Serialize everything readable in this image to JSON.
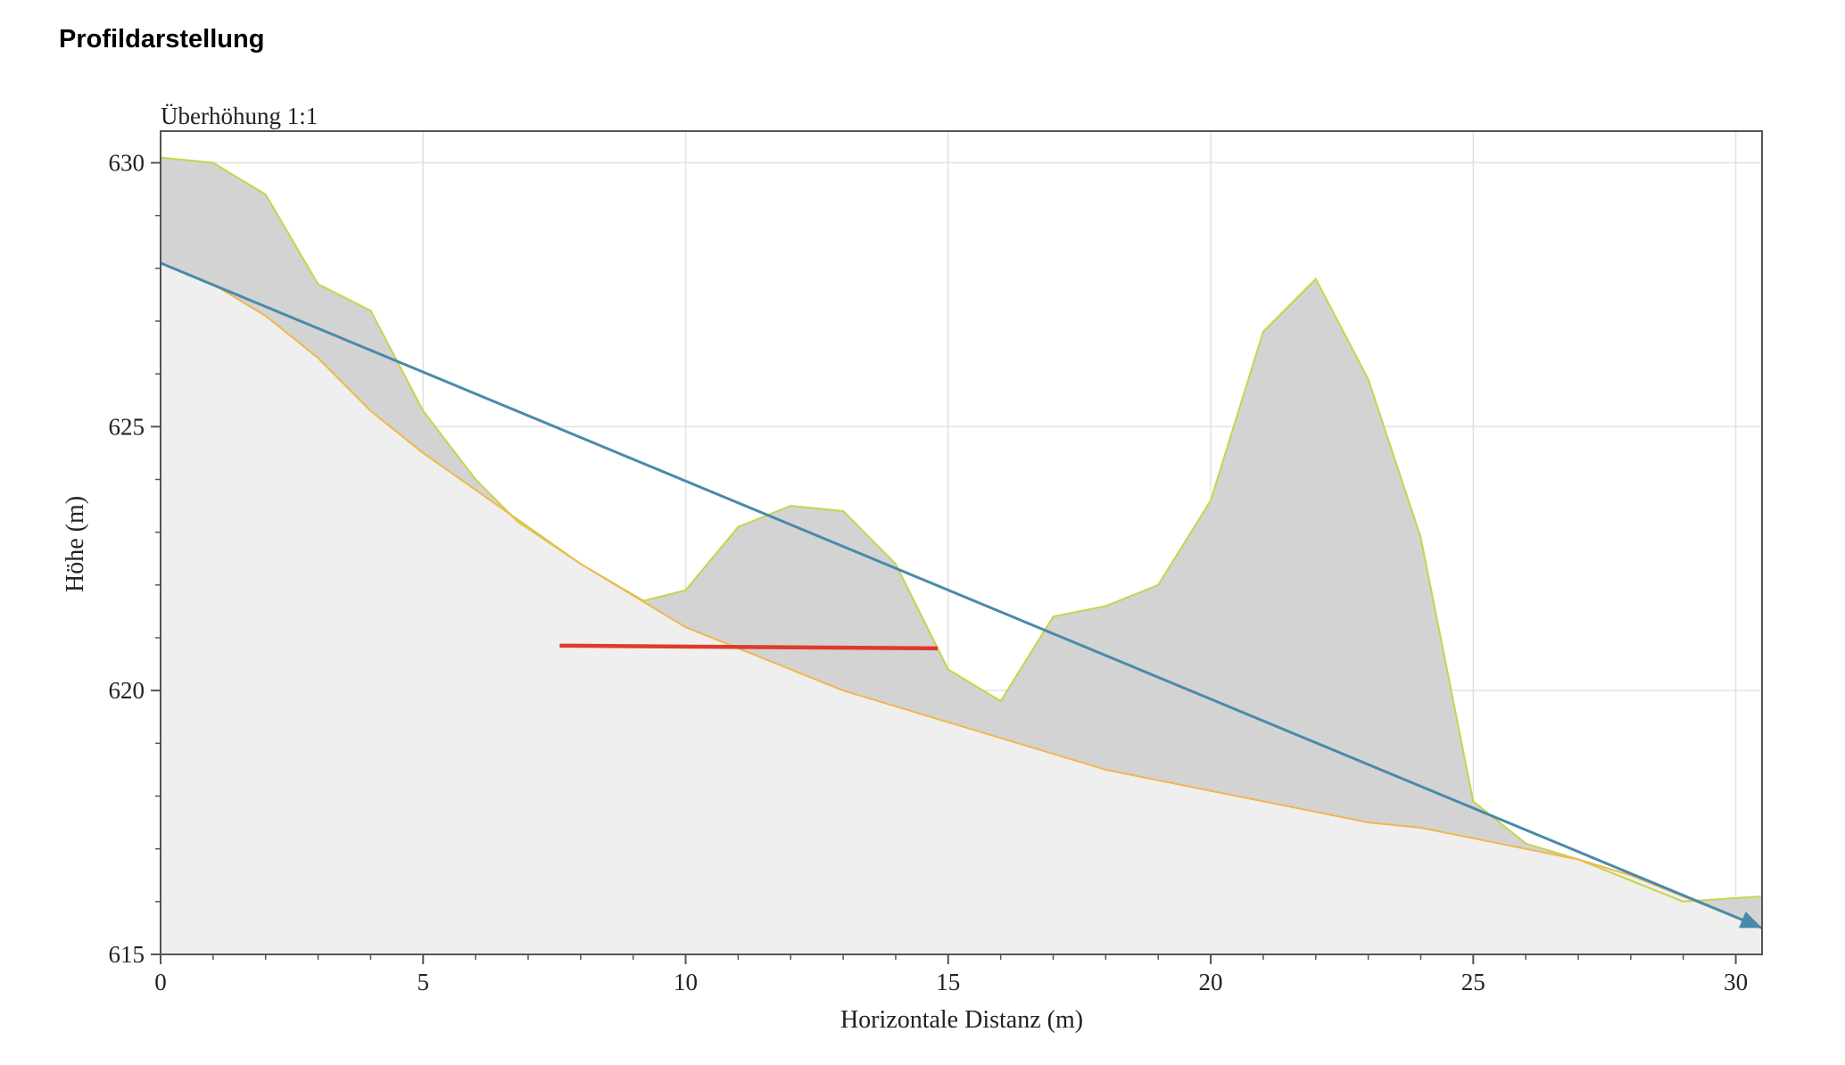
{
  "page": {
    "title": "Profildarstellung"
  },
  "chart_data": {
    "type": "line",
    "annotation": "Überhöhung 1:1",
    "xlabel": "Horizontale Distanz (m)",
    "ylabel": "Höhe (m)",
    "xlim": [
      0,
      30.5
    ],
    "ylim": [
      615,
      630.6
    ],
    "xticks": [
      0,
      5,
      10,
      15,
      20,
      25,
      30
    ],
    "yticks": [
      615,
      620,
      625,
      630
    ],
    "xminor": 1,
    "yminor": 1,
    "grid": true,
    "colors": {
      "terrain_line": "#c8d44a",
      "terrain_fill": "#d3d3d3",
      "lower_line": "#f0b74a",
      "lower_fill": "#efefef",
      "trajectory": "#4a8aa8",
      "marker": "#e03a2a",
      "grid": "#e2e2e2",
      "frame": "#555555"
    },
    "series": [
      {
        "key": "terrain",
        "x": [
          0,
          1,
          2,
          3,
          4,
          5,
          6,
          6.8,
          8,
          9.2,
          10,
          11,
          12,
          13,
          14,
          15,
          16,
          17,
          18,
          19,
          20,
          21,
          22,
          23,
          24,
          25,
          26,
          27,
          28,
          29,
          30.5
        ],
        "y": [
          630.1,
          630.0,
          629.4,
          627.7,
          627.2,
          625.3,
          624.0,
          623.2,
          622.4,
          621.7,
          621.9,
          623.1,
          623.5,
          623.4,
          622.4,
          620.4,
          619.8,
          621.4,
          621.6,
          622.0,
          623.6,
          626.8,
          627.8,
          625.9,
          622.9,
          617.9,
          617.1,
          616.8,
          616.4,
          616.0,
          616.1
        ]
      },
      {
        "key": "lower",
        "x": [
          0,
          1,
          2,
          3,
          4,
          5,
          6,
          7,
          8,
          9,
          10,
          11,
          12,
          13,
          14,
          15,
          16,
          17,
          18,
          19,
          20,
          21,
          22,
          23,
          24,
          25,
          26,
          27,
          28,
          29,
          30.5
        ],
        "y": [
          628.1,
          627.7,
          627.1,
          626.3,
          625.3,
          624.5,
          623.8,
          623.1,
          622.4,
          621.8,
          621.2,
          620.8,
          620.4,
          620.0,
          619.7,
          619.4,
          619.1,
          618.8,
          618.5,
          618.3,
          618.1,
          617.9,
          617.7,
          617.5,
          617.4,
          617.2,
          617.0,
          616.8,
          616.5,
          616.1,
          615.5
        ]
      },
      {
        "key": "trajectory",
        "x": [
          0,
          30.5
        ],
        "y": [
          628.1,
          615.5
        ]
      },
      {
        "key": "marker",
        "x": [
          7.6,
          14.8
        ],
        "y": [
          620.85,
          620.8
        ]
      }
    ]
  }
}
